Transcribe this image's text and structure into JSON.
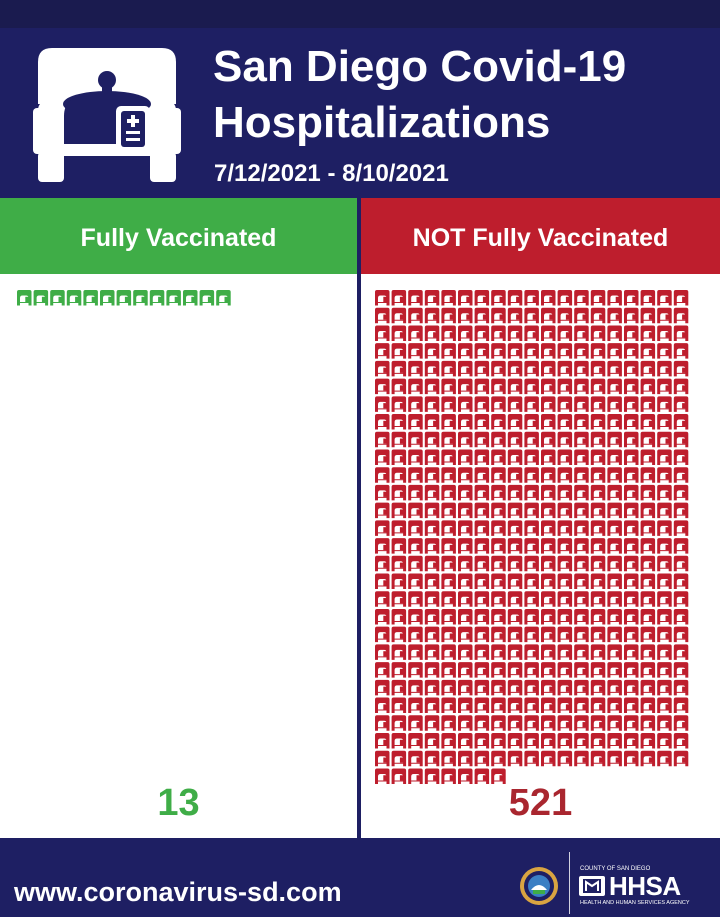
{
  "header": {
    "title_line1": "San Diego Covid-19",
    "title_line2": "Hospitalizations",
    "date_range": "7/12/2021 - 8/10/2021",
    "icon": "hospital-bed-icon"
  },
  "colors": {
    "navy": "#1e1f63",
    "vaccinated_green": "#3fad47",
    "not_vaccinated_red": "#be1e2d",
    "count_red": "#a9262f"
  },
  "chart_data": {
    "type": "pictograph",
    "unit_icon": "hospital-bed-icon",
    "categories": [
      "Fully Vaccinated",
      "NOT Fully Vaccinated"
    ],
    "values": [
      13,
      521
    ],
    "colors": [
      "#3fad47",
      "#be1e2d"
    ],
    "value_labels": [
      "13",
      "521"
    ]
  },
  "footer": {
    "website": "www.coronavirus-sd.com",
    "seal_icon": "county-seal-icon",
    "org_top": "COUNTY OF SAN DIEGO",
    "org_name": "HHSA",
    "org_bottom": "HEALTH AND HUMAN SERVICES AGENCY"
  }
}
